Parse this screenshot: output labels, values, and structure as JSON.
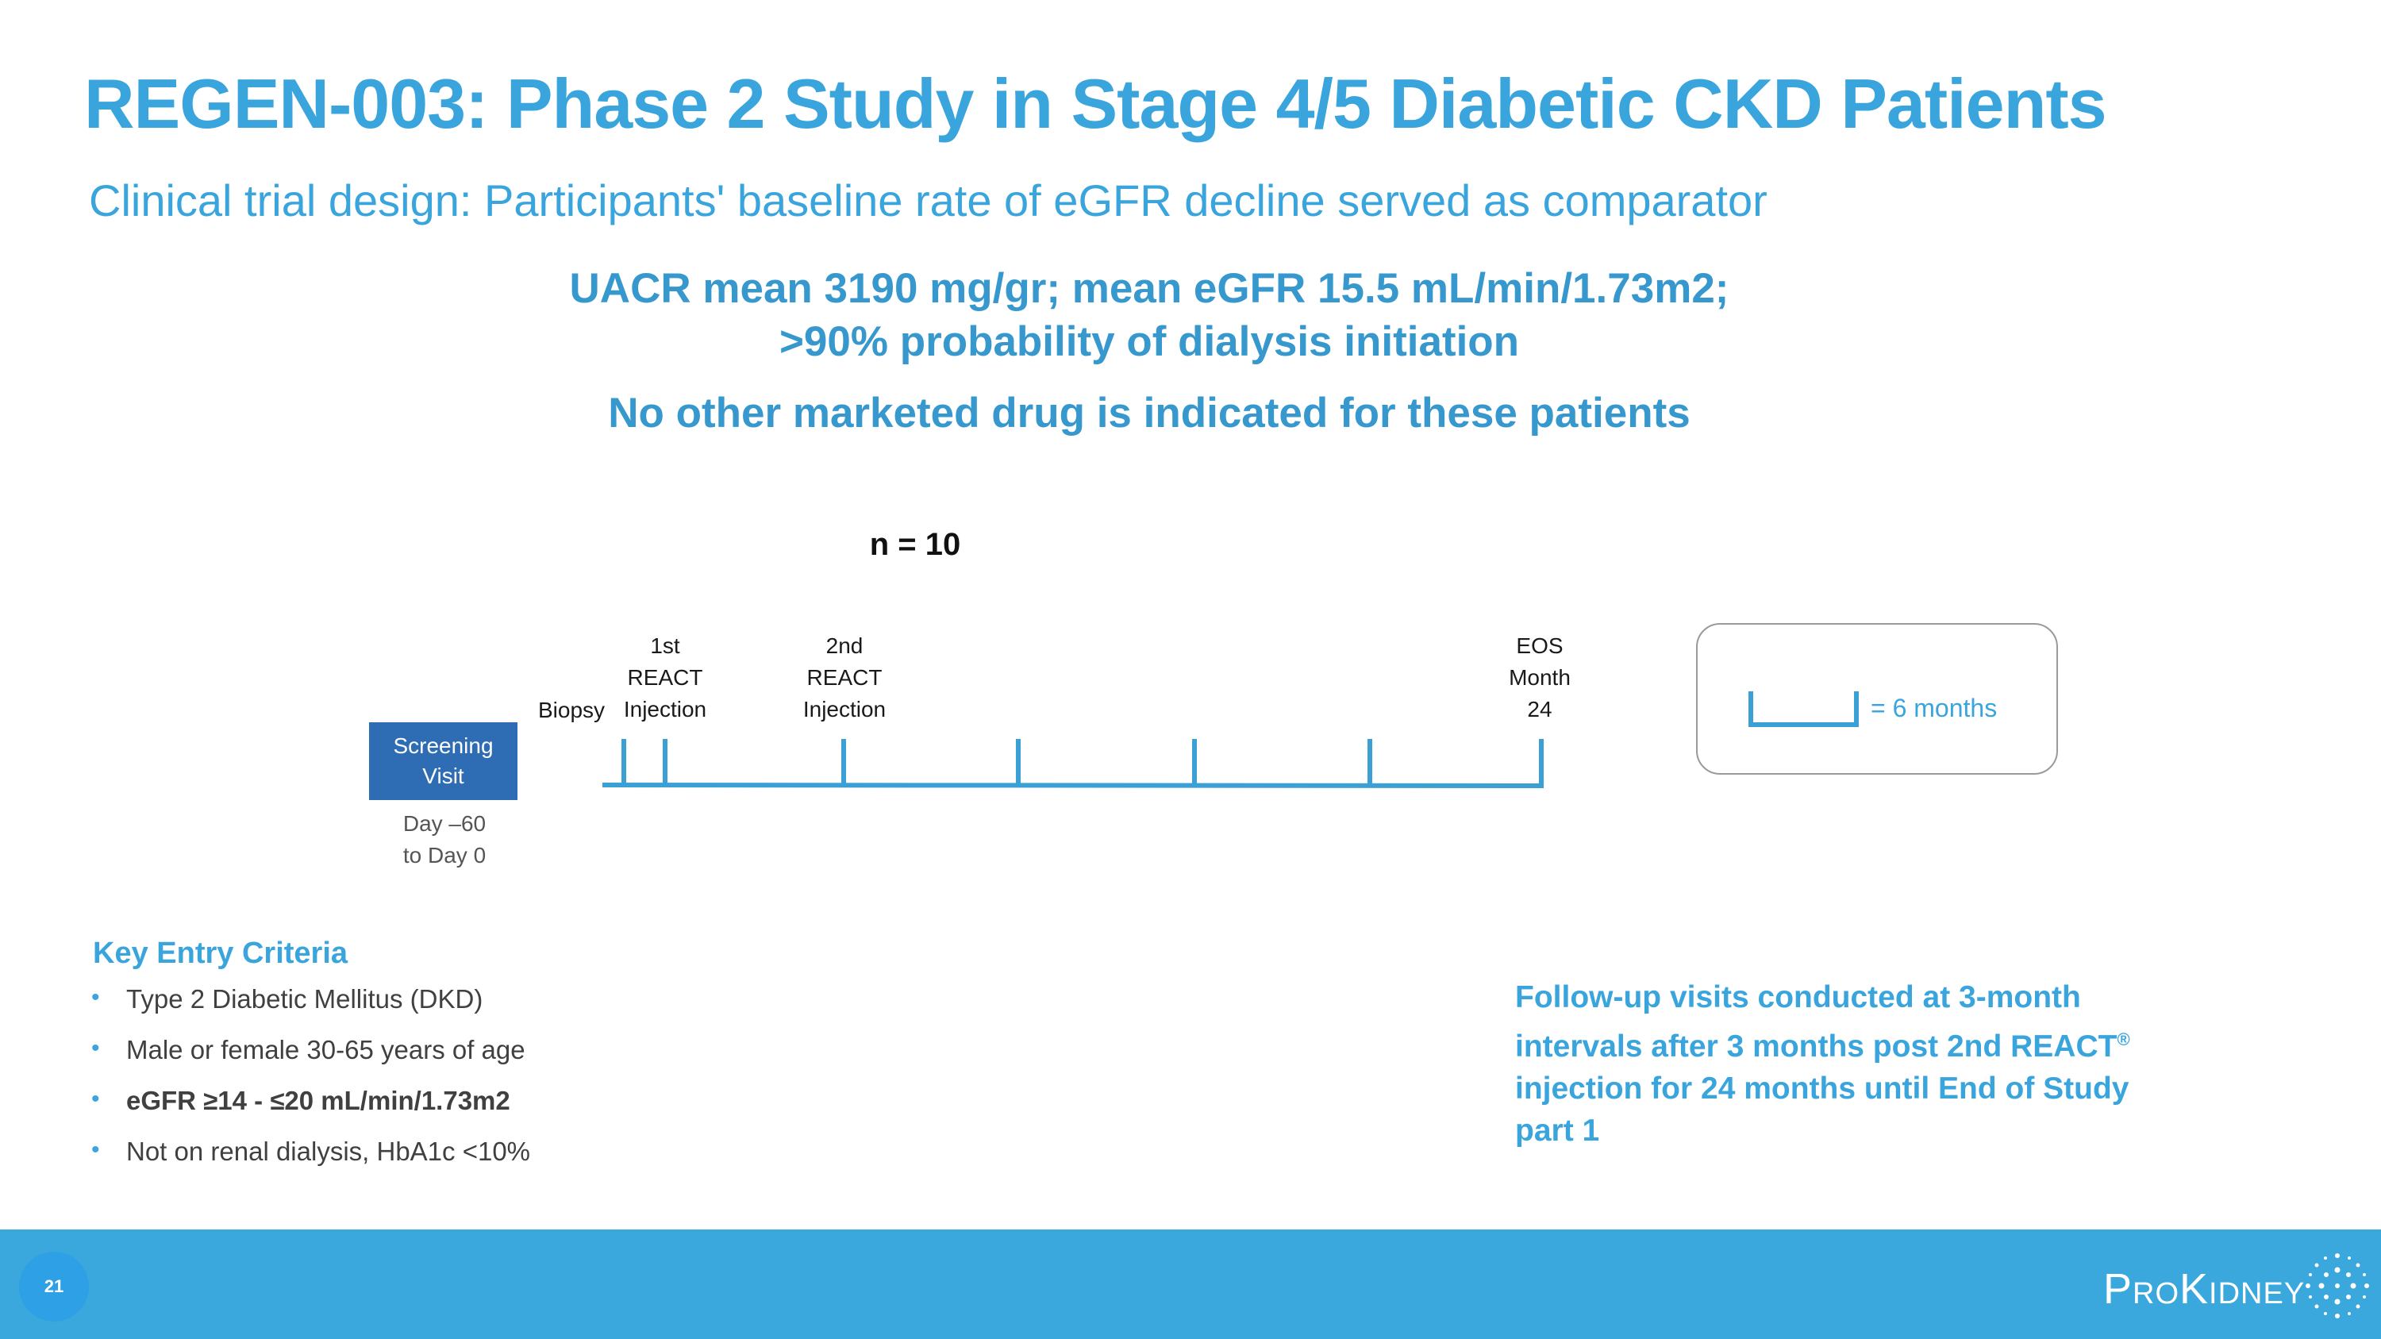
{
  "title": "REGEN-003: Phase 2 Study in Stage 4/5 Diabetic CKD Patients",
  "subtitle": "Clinical trial design: Participants' baseline rate of eGFR decline served as comparator",
  "highlights": {
    "line1": "UACR mean 3190 mg/gr; mean eGFR 15.5 mL/min/1.73m2;",
    "line2": ">90% probability of dialysis initiation",
    "line3": "No other marketed drug is indicated for these patients"
  },
  "diagram": {
    "n_label": "n = 10",
    "screening": {
      "box": [
        "Screening",
        "Visit"
      ],
      "days": [
        "Day –60",
        "to Day 0"
      ]
    },
    "biopsy": "Biopsy",
    "injection1": [
      "1st",
      "REACT",
      "Injection"
    ],
    "injection2": [
      "2nd",
      "REACT",
      "Injection"
    ],
    "eos": [
      "EOS",
      "Month",
      "24"
    ],
    "legend": "= 6 months"
  },
  "criteria": {
    "heading": "Key Entry Criteria",
    "items": [
      {
        "text": "Type 2 Diabetic Mellitus (DKD)"
      },
      {
        "text": "Male or female 30-65 years of age"
      },
      {
        "text": "eGFR  ≥14 - ≤20 mL/min/1.73m2"
      },
      {
        "text": "Not on renal dialysis, HbA1c  <10%"
      }
    ]
  },
  "followup": {
    "before": "Follow-up visits conducted at 3-month intervals after 3 months post 2nd REACT",
    "mark": "®",
    "after": " injection for 24 months until End of Study part 1"
  },
  "footer": {
    "page_number": "21",
    "logo": "ProKidney"
  },
  "colors": {
    "brand_blue": "#3aa5dc",
    "screening_box": "#2e6db4",
    "footer_bar": "#3aa8dc",
    "timeline": "#3aa0d6"
  }
}
